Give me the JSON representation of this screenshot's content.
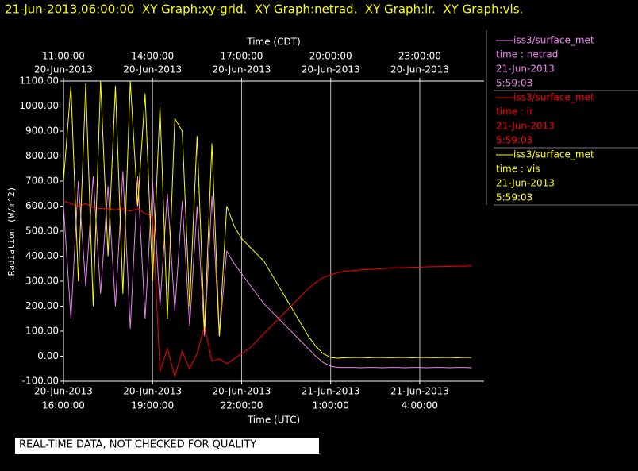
{
  "chart_data": {
    "type": "line",
    "title": "21-jun-2013,06:00:00  XY Graph:xy-grid.  XY Graph:netrad.  XY Graph:ir.  XY Graph:vis.",
    "x_label": "Time (UTC)",
    "x2_label": "Time (CDT)",
    "y_label": "Radiation (W/m^2)",
    "note": "REAL-TIME DATA, NOT CHECKED FOR QUALITY",
    "grid": true,
    "xlim": [
      "2013-06-20T16:00",
      "2013-06-21T06:10"
    ],
    "xticks": [
      {
        "value": "2013-06-20T16:00",
        "label": [
          "20-Jun-2013",
          "16:00:00"
        ]
      },
      {
        "value": "2013-06-20T19:00",
        "label": [
          "20-Jun-2013",
          "19:00:00"
        ]
      },
      {
        "value": "2013-06-20T22:00",
        "label": [
          "20-Jun-2013",
          "22:00:00"
        ]
      },
      {
        "value": "2013-06-21T01:00",
        "label": [
          "21-Jun-2013",
          "1:00:00"
        ]
      },
      {
        "value": "2013-06-21T04:00",
        "label": [
          "21-Jun-2013",
          "4:00:00"
        ]
      }
    ],
    "x2ticks": [
      {
        "value": "2013-06-20T16:00",
        "label": [
          "11:00:00",
          "20-Jun-2013"
        ]
      },
      {
        "value": "2013-06-20T19:00",
        "label": [
          "14:00:00",
          "20-Jun-2013"
        ]
      },
      {
        "value": "2013-06-20T22:00",
        "label": [
          "17:00:00",
          "20-Jun-2013"
        ]
      },
      {
        "value": "2013-06-21T01:00",
        "label": [
          "20:00:00",
          "20-Jun-2013"
        ]
      },
      {
        "value": "2013-06-21T04:00",
        "label": [
          "23:00:00",
          "20-Jun-2013"
        ]
      }
    ],
    "ylim": [
      -100,
      1100
    ],
    "yticks": [
      {
        "value": 1100,
        "label": "1100.00"
      },
      {
        "value": 1000,
        "label": "1000.00"
      },
      {
        "value": 900,
        "label": "900.00"
      },
      {
        "value": 800,
        "label": "800.00"
      },
      {
        "value": 700,
        "label": "700.00"
      },
      {
        "value": 600,
        "label": "600.00"
      },
      {
        "value": 500,
        "label": "500.00"
      },
      {
        "value": 400,
        "label": "400.00"
      },
      {
        "value": 300,
        "label": "300.00"
      },
      {
        "value": 200,
        "label": "200.00"
      },
      {
        "value": 100,
        "label": "100.00"
      },
      {
        "value": 0,
        "label": "0.00"
      },
      {
        "value": -100,
        "label": "-100.00"
      }
    ],
    "x": [
      "2013-06-20T16:00",
      "2013-06-20T16:15",
      "2013-06-20T16:30",
      "2013-06-20T16:45",
      "2013-06-20T17:00",
      "2013-06-20T17:15",
      "2013-06-20T17:30",
      "2013-06-20T17:45",
      "2013-06-20T18:00",
      "2013-06-20T18:15",
      "2013-06-20T18:30",
      "2013-06-20T18:45",
      "2013-06-20T19:00",
      "2013-06-20T19:15",
      "2013-06-20T19:30",
      "2013-06-20T19:45",
      "2013-06-20T20:00",
      "2013-06-20T20:15",
      "2013-06-20T20:30",
      "2013-06-20T20:45",
      "2013-06-20T21:00",
      "2013-06-20T21:15",
      "2013-06-20T21:30",
      "2013-06-20T21:45",
      "2013-06-20T22:00",
      "2013-06-20T22:15",
      "2013-06-20T22:30",
      "2013-06-20T22:45",
      "2013-06-20T23:00",
      "2013-06-20T23:15",
      "2013-06-20T23:30",
      "2013-06-20T23:45",
      "2013-06-21T00:00",
      "2013-06-21T00:15",
      "2013-06-21T00:30",
      "2013-06-21T00:45",
      "2013-06-21T01:00",
      "2013-06-21T01:15",
      "2013-06-21T01:30",
      "2013-06-21T01:45",
      "2013-06-21T02:00",
      "2013-06-21T02:15",
      "2013-06-21T02:30",
      "2013-06-21T02:45",
      "2013-06-21T03:00",
      "2013-06-21T03:15",
      "2013-06-21T03:30",
      "2013-06-21T03:45",
      "2013-06-21T04:00",
      "2013-06-21T04:15",
      "2013-06-21T04:30",
      "2013-06-21T04:45",
      "2013-06-21T05:00",
      "2013-06-21T05:15",
      "2013-06-21T05:30",
      "2013-06-21T05:45"
    ],
    "series": [
      {
        "name": "iss3/surface_met",
        "variable": "time : netrad",
        "date": "21-Jun-2013",
        "time": "5:59:03",
        "color": "#ee82ee",
        "values": [
          600,
          150,
          700,
          280,
          720,
          250,
          680,
          200,
          740,
          110,
          720,
          150,
          700,
          200,
          650,
          180,
          620,
          120,
          600,
          80,
          640,
          80,
          420,
          370,
          330,
          290,
          250,
          210,
          180,
          150,
          120,
          90,
          60,
          30,
          0,
          -25,
          -40,
          -45,
          -45,
          -45,
          -46,
          -45,
          -45,
          -46,
          -45,
          -45,
          -46,
          -45,
          -45,
          -46,
          -45,
          -45,
          -46,
          -45,
          -45,
          -46
        ]
      },
      {
        "name": "iss3/surface_met",
        "variable": "time : ir",
        "date": "21-Jun-2013",
        "time": "5:59:03",
        "color": "#ff0000",
        "values": [
          620,
          610,
          600,
          610,
          595,
          590,
          590,
          585,
          590,
          580,
          590,
          570,
          560,
          -60,
          30,
          -80,
          20,
          -50,
          10,
          120,
          -20,
          -10,
          -30,
          -10,
          10,
          30,
          60,
          90,
          120,
          150,
          180,
          210,
          240,
          270,
          295,
          315,
          325,
          335,
          340,
          342,
          345,
          347,
          348,
          350,
          352,
          353,
          354,
          355,
          356,
          357,
          358,
          358,
          359,
          360,
          360,
          361
        ]
      },
      {
        "name": "iss3/surface_met",
        "variable": "time : vis",
        "date": "21-Jun-2013",
        "time": "5:59:03",
        "color": "#ffff00",
        "values": [
          700,
          1080,
          300,
          1090,
          200,
          1100,
          400,
          1080,
          250,
          1100,
          600,
          1050,
          300,
          1000,
          150,
          950,
          900,
          200,
          880,
          100,
          850,
          80,
          600,
          520,
          470,
          440,
          410,
          380,
          330,
          280,
          230,
          180,
          130,
          80,
          40,
          10,
          -5,
          -8,
          -6,
          -5,
          -5,
          -6,
          -5,
          -5,
          -6,
          -5,
          -5,
          -6,
          -5,
          -5,
          -6,
          -5,
          -5,
          -6,
          -5,
          -5
        ]
      }
    ]
  }
}
